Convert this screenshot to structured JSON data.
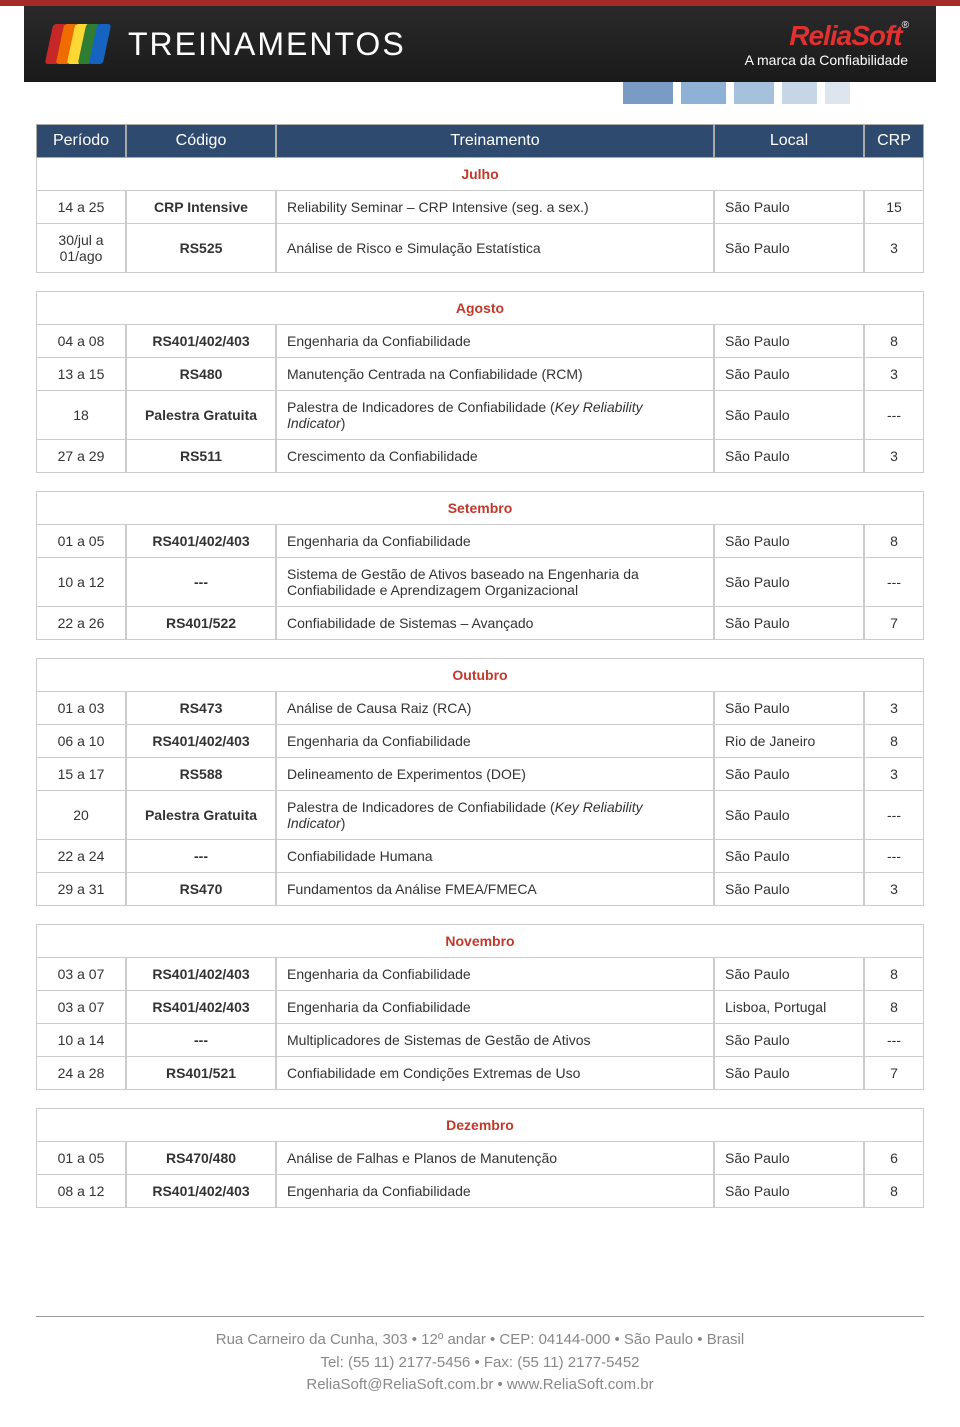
{
  "page": {
    "header_title": "TREINAMENTOS",
    "brand": "ReliaSoft",
    "tagline": "A marca da Confiabilidade",
    "logo_colors": [
      "#c62828",
      "#ef6c00",
      "#fdd835",
      "#2e7d32",
      "#1565c0"
    ],
    "tab_colors": [
      "#7a9bc4",
      "#8fb1d6",
      "#a6c1dc",
      "#c7d6e6",
      "#dde6ef"
    ],
    "tab_widths": [
      50,
      45,
      40,
      35,
      25
    ]
  },
  "table_header": {
    "periodo": "Período",
    "codigo": "Código",
    "treinamento": "Treinamento",
    "local": "Local",
    "crp": "CRP"
  },
  "months": [
    {
      "name": "Julho",
      "show_header": true,
      "rows": [
        {
          "periodo": "14 a 25",
          "codigo": "CRP Intensive",
          "treinamento": "Reliability Seminar – CRP Intensive (seg. a sex.)",
          "local": "São Paulo",
          "crp": "15"
        },
        {
          "periodo": "30/jul a 01/ago",
          "codigo": "RS525",
          "treinamento": "Análise de Risco e Simulação Estatística",
          "local": "São Paulo",
          "crp": "3"
        }
      ]
    },
    {
      "name": "Agosto",
      "show_header": false,
      "rows": [
        {
          "periodo": "04 a 08",
          "codigo": "RS401/402/403",
          "treinamento": "Engenharia da Confiabilidade",
          "local": "São Paulo",
          "crp": "8"
        },
        {
          "periodo": "13 a 15",
          "codigo": "RS480",
          "treinamento": "Manutenção Centrada na Confiabilidade (RCM)",
          "local": "São Paulo",
          "crp": "3"
        },
        {
          "periodo": "18",
          "codigo": "Palestra Gratuita",
          "treinamento_html": "Palestra de Indicadores de Confiabilidade (<span class='italic-part'>Key Reliability Indicator</span>)",
          "local": "São Paulo",
          "crp": "---"
        },
        {
          "periodo": "27 a 29",
          "codigo": "RS511",
          "treinamento": "Crescimento da Confiabilidade",
          "local": "São Paulo",
          "crp": "3"
        }
      ]
    },
    {
      "name": "Setembro",
      "show_header": false,
      "rows": [
        {
          "periodo": "01 a 05",
          "codigo": "RS401/402/403",
          "treinamento": "Engenharia da Confiabilidade",
          "local": "São Paulo",
          "crp": "8"
        },
        {
          "periodo": "10 a 12",
          "codigo": "---",
          "treinamento": "Sistema de Gestão de Ativos baseado na Engenharia da Confiabilidade e Aprendizagem Organizacional",
          "local": "São Paulo",
          "crp": "---"
        },
        {
          "periodo": "22 a 26",
          "codigo": "RS401/522",
          "treinamento": "Confiabilidade de Sistemas – Avançado",
          "local": "São Paulo",
          "crp": "7"
        }
      ]
    },
    {
      "name": "Outubro",
      "show_header": false,
      "rows": [
        {
          "periodo": "01 a 03",
          "codigo": "RS473",
          "treinamento": "Análise de Causa Raiz (RCA)",
          "local": "São Paulo",
          "crp": "3"
        },
        {
          "periodo": "06 a 10",
          "codigo": "RS401/402/403",
          "treinamento": "Engenharia da Confiabilidade",
          "local": "Rio de Janeiro",
          "crp": "8"
        },
        {
          "periodo": "15 a 17",
          "codigo": "RS588",
          "treinamento": "Delineamento de Experimentos (DOE)",
          "local": "São Paulo",
          "crp": "3"
        },
        {
          "periodo": "20",
          "codigo": "Palestra Gratuita",
          "treinamento_html": "Palestra de Indicadores de Confiabilidade (<span class='italic-part'>Key Reliability Indicator</span>)",
          "local": "São Paulo",
          "crp": "---"
        },
        {
          "periodo": "22 a 24",
          "codigo": "---",
          "treinamento": "Confiabilidade Humana",
          "local": "São Paulo",
          "crp": "---"
        },
        {
          "periodo": "29 a 31",
          "codigo": "RS470",
          "treinamento": "Fundamentos da Análise FMEA/FMECA",
          "local": "São Paulo",
          "crp": "3"
        }
      ]
    },
    {
      "name": "Novembro",
      "show_header": false,
      "rows": [
        {
          "periodo": "03 a 07",
          "codigo": "RS401/402/403",
          "treinamento": "Engenharia da Confiabilidade",
          "local": "São Paulo",
          "crp": "8"
        },
        {
          "periodo": "03 a 07",
          "codigo": "RS401/402/403",
          "treinamento": "Engenharia da Confiabilidade",
          "local": "Lisboa, Portugal",
          "crp": "8"
        },
        {
          "periodo": "10 a 14",
          "codigo": "---",
          "treinamento": "Multiplicadores de Sistemas de Gestão de Ativos",
          "local": "São Paulo",
          "crp": "---"
        },
        {
          "periodo": "24 a 28",
          "codigo": "RS401/521",
          "treinamento": "Confiabilidade em Condições Extremas de Uso",
          "local": "São Paulo",
          "crp": "7"
        }
      ]
    },
    {
      "name": "Dezembro",
      "show_header": false,
      "rows": [
        {
          "periodo": "01 a 05",
          "codigo": "RS470/480",
          "treinamento": "Análise de Falhas e Planos de Manutenção",
          "local": "São Paulo",
          "crp": "6"
        },
        {
          "periodo": "08 a 12",
          "codigo": "RS401/402/403",
          "treinamento": "Engenharia da Confiabilidade",
          "local": "São Paulo",
          "crp": "8"
        }
      ]
    }
  ],
  "footer": {
    "line1": "Rua Carneiro da Cunha, 303 • 12º andar • CEP: 04144-000 • São Paulo • Brasil",
    "line2": "Tel: (55 11) 2177-5456 • Fax: (55 11) 2177-5452",
    "line3": "ReliaSoft@ReliaSoft.com.br • www.ReliaSoft.com.br"
  },
  "colors": {
    "header_bg": "#2e4a6e",
    "month_text": "#c0392b",
    "border": "#cccccc"
  }
}
